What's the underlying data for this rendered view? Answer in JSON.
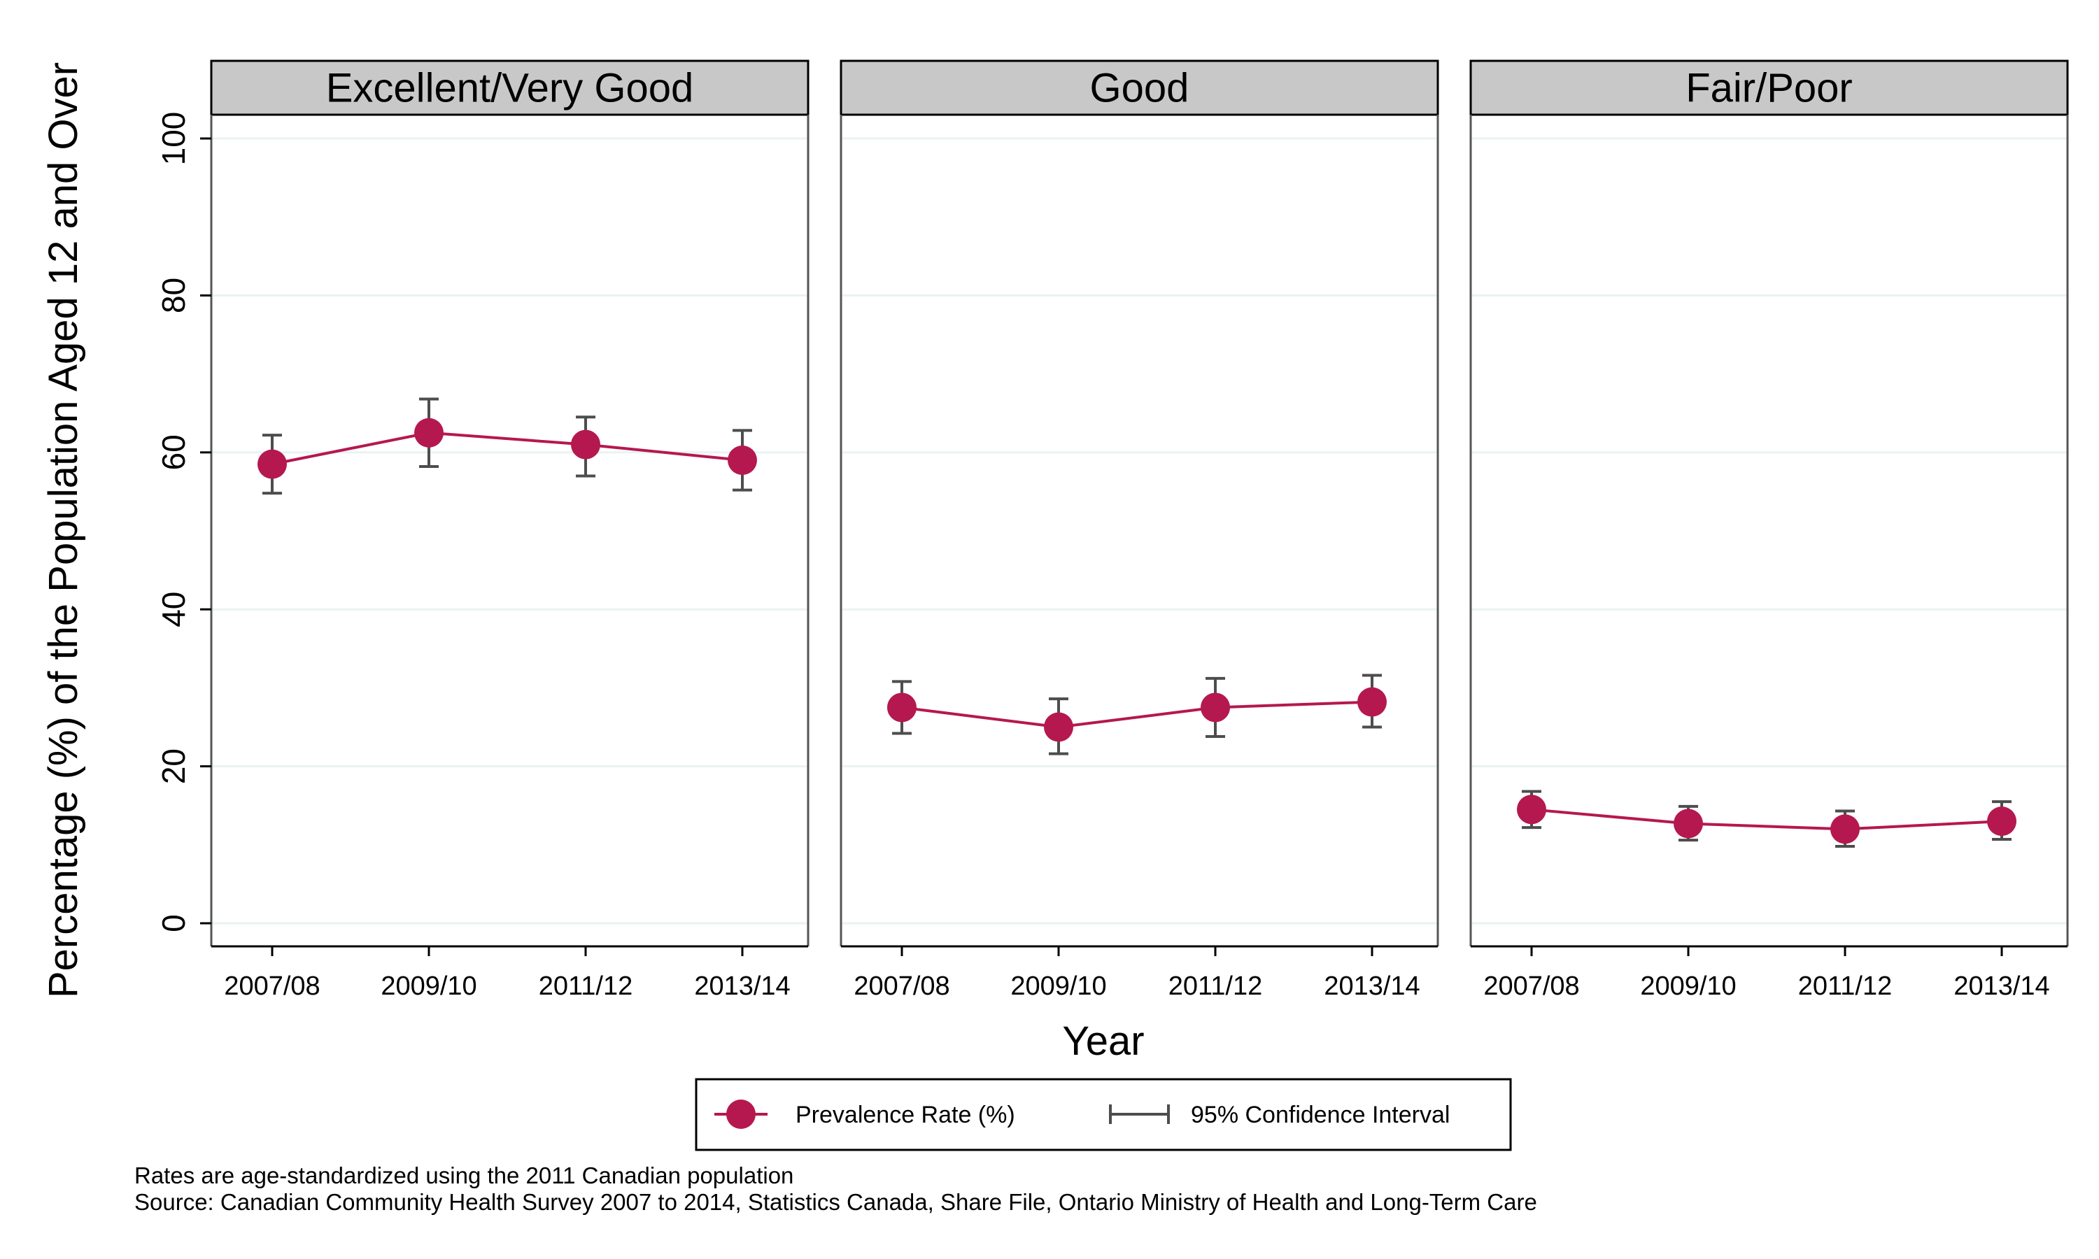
{
  "chart_data": {
    "type": "line",
    "panels": [
      "Excellent/Very Good",
      "Good",
      "Fair/Poor"
    ],
    "categories": [
      "2007/08",
      "2009/10",
      "2011/12",
      "2013/14"
    ],
    "series": [
      {
        "panel": "Excellent/Very Good",
        "values": [
          58.5,
          62.5,
          61.0,
          59.0
        ],
        "ci_lower": [
          54.8,
          58.2,
          57.0,
          55.2
        ],
        "ci_upper": [
          62.2,
          66.8,
          64.5,
          62.8
        ]
      },
      {
        "panel": "Good",
        "values": [
          27.5,
          25.0,
          27.5,
          28.2
        ],
        "ci_lower": [
          24.2,
          21.6,
          23.8,
          25.0
        ],
        "ci_upper": [
          30.8,
          28.6,
          31.2,
          31.6
        ]
      },
      {
        "panel": "Fair/Poor",
        "values": [
          14.5,
          12.7,
          12.0,
          13.0
        ],
        "ci_lower": [
          12.2,
          10.6,
          9.8,
          10.7
        ],
        "ci_upper": [
          16.8,
          14.9,
          14.3,
          15.5
        ]
      }
    ],
    "ylabel": "Percentage (%) of the Population Aged 12 and Over",
    "xlabel": "Year",
    "ylim": [
      0,
      100
    ],
    "yticks": [
      0,
      20,
      40,
      60,
      80,
      100
    ],
    "grid": true,
    "legend": {
      "position": "bottom",
      "entries": [
        "Prevalence Rate (%)",
        "95% Confidence Interval"
      ]
    }
  },
  "colors": {
    "series": "#b5184f",
    "ci": "#4d4d4d",
    "strip_fill": "#c8c8c8",
    "grid": "#eaf2f3"
  },
  "notes": {
    "line1": "Rates are age-standardized using the 2011 Canadian population",
    "line2": "Source: Canadian Community Health Survey 2007 to 2014, Statistics Canada, Share File, Ontario Ministry of Health and Long-Term Care"
  }
}
